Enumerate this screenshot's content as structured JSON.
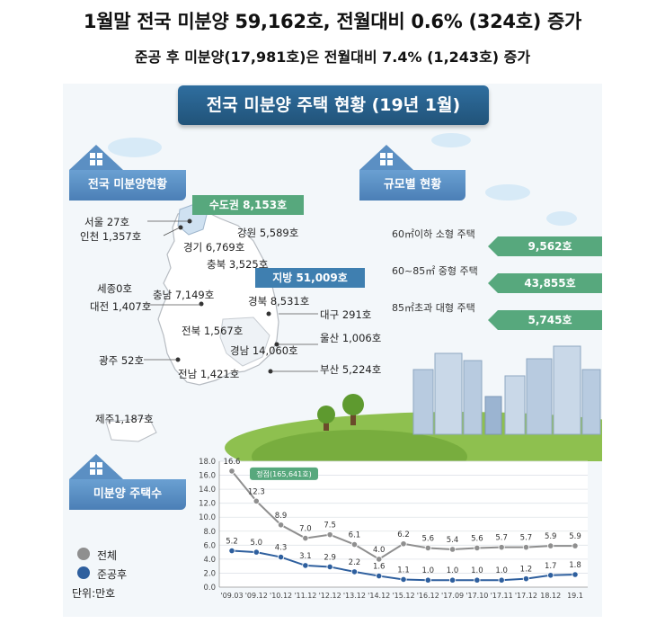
{
  "headline1": "1월말 전국 미분양 59,162호, 전월대비 0.6% (324호) 증가",
  "headline2": "준공 후 미분양(17,981호)은 전월대비 7.4% (1,243호) 증가",
  "banner": "전국 미분양 주택 현황 (19년 1월)",
  "sections": {
    "national": "전국 미분양현황",
    "by_size": "규모별 현황",
    "count": "미분양 주택수"
  },
  "regions": {
    "capital_tag": "수도권 8,153호",
    "provinces_tag": "지방 51,009호",
    "seoul": "서울   27호",
    "incheon": "인천 1,357호",
    "gyeonggi": "경기 6,769호",
    "gangwon": "강원 5,589호",
    "chungbuk": "충북 3,525호",
    "sejong": "세종0호",
    "chungnam": "충남 7,149호",
    "gyeongbuk": "경북 8,531호",
    "daejeon": "대전 1,407호",
    "daegu": "대구 291호",
    "jeonbuk": "전북 1,567호",
    "ulsan": "울산 1,006호",
    "gyeongnam": "경남 14,060호",
    "gwangju": "광주 52호",
    "busan": "부산 5,224호",
    "jeonnam": "전남 1,421호",
    "jeju": "제주1,187호"
  },
  "sizes": [
    {
      "label": "60㎡이하 소형 주택",
      "value": "9,562호"
    },
    {
      "label": "60~85㎡ 중형 주택",
      "value": "43,855호"
    },
    {
      "label": "85㎡초과 대형 주택",
      "value": "5,745호"
    }
  ],
  "legend": {
    "total": "전체",
    "completed": "준공후",
    "unit": "단위:만호"
  },
  "colors": {
    "banner": "#2a5f8c",
    "section": "#5b8fc3",
    "capital_tag": "#57a87d",
    "provinces_tag": "#3f7fb0",
    "bar": "#57a87d",
    "total_line": "#8f8f8f",
    "completed_line": "#2e5f9e"
  },
  "chart_data": {
    "type": "line",
    "categories": [
      "'09.03",
      "'09.12",
      "'10.12",
      "'11.12",
      "'12.12",
      "'13.12",
      "'14.12",
      "'15.12",
      "'16.12",
      "'17.09",
      "'17.10",
      "'17.11",
      "'17.12",
      "18.12",
      "19.1"
    ],
    "ylim": [
      0,
      18
    ],
    "yticks": [
      "0.0",
      "2.0",
      "4.0",
      "6.0",
      "8.0",
      "10.0",
      "12.0",
      "14.0",
      "16.0",
      "18.0"
    ],
    "series": [
      {
        "name": "전체",
        "values": [
          16.6,
          12.3,
          8.9,
          7.0,
          7.5,
          6.1,
          4.0,
          6.2,
          5.6,
          5.4,
          5.6,
          5.7,
          5.7,
          5.9,
          5.9
        ],
        "labels": [
          "16.6",
          "12.3",
          "8.9",
          "7.0",
          "7.5",
          "6.1",
          "4.0",
          "6.2",
          "5.6",
          "5.4",
          "5.6",
          "5.7",
          "5.7",
          "5.9",
          "5.9"
        ]
      },
      {
        "name": "준공후",
        "values": [
          5.2,
          5.0,
          4.3,
          3.1,
          2.9,
          2.2,
          1.6,
          1.1,
          1.0,
          1.0,
          1.0,
          1.0,
          1.2,
          1.7,
          1.8
        ],
        "labels": [
          "5.2",
          "5.0",
          "4.3",
          "3.1",
          "2.9",
          "2.2",
          "1.6",
          "1.1",
          "1.0",
          "1.0",
          "1.0",
          "1.0",
          "1.2",
          "1.7",
          "1.8"
        ]
      }
    ],
    "annotation": "정점(165,641호)"
  }
}
